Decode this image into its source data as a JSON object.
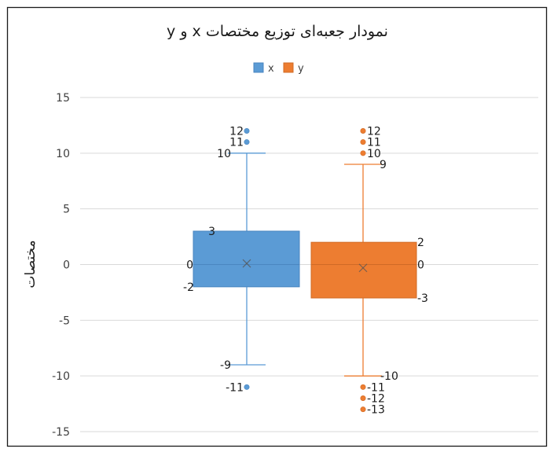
{
  "chart_data": {
    "type": "box",
    "title": "نمودار جعبه‌ای توزیع مختصات x و y",
    "ylabel": "مختصات",
    "ylim": [
      -15,
      15
    ],
    "yticks": [
      -15,
      -10,
      -5,
      0,
      5,
      10,
      15
    ],
    "grid": true,
    "legend_position": "top",
    "series": [
      {
        "name": "x",
        "color": "#5B9BD5",
        "edge": "#4A86C0",
        "min": -9,
        "q1": -2,
        "median": 0,
        "q3": 3,
        "max": 10,
        "mean": 0.1,
        "outliers": [
          12,
          11,
          -11
        ],
        "labels": [
          {
            "value": 12,
            "text": "12"
          },
          {
            "value": 11,
            "text": "11"
          },
          {
            "value": 10,
            "text": "10"
          },
          {
            "value": 3,
            "text": "3"
          },
          {
            "value": 0,
            "text": "0"
          },
          {
            "value": -2,
            "text": "-2"
          },
          {
            "value": -9,
            "text": "-9"
          },
          {
            "value": -11,
            "text": "-11"
          }
        ]
      },
      {
        "name": "y",
        "color": "#ED7D31",
        "edge": "#D06A25",
        "min": -10,
        "q1": -3,
        "median": 0,
        "q3": 2,
        "max": 9,
        "mean": -0.3,
        "outliers": [
          12,
          11,
          10,
          -11,
          -12,
          -13
        ],
        "labels": [
          {
            "value": 12,
            "text": "12"
          },
          {
            "value": 11,
            "text": "11"
          },
          {
            "value": 10,
            "text": "10"
          },
          {
            "value": 9,
            "text": "9"
          },
          {
            "value": 2,
            "text": "2"
          },
          {
            "value": 0,
            "text": "0"
          },
          {
            "value": -3,
            "text": "-3"
          },
          {
            "value": -10,
            "text": "-10"
          },
          {
            "value": -11,
            "text": "-11"
          },
          {
            "value": -12,
            "text": "-12"
          },
          {
            "value": -13,
            "text": "-13"
          }
        ]
      }
    ]
  }
}
